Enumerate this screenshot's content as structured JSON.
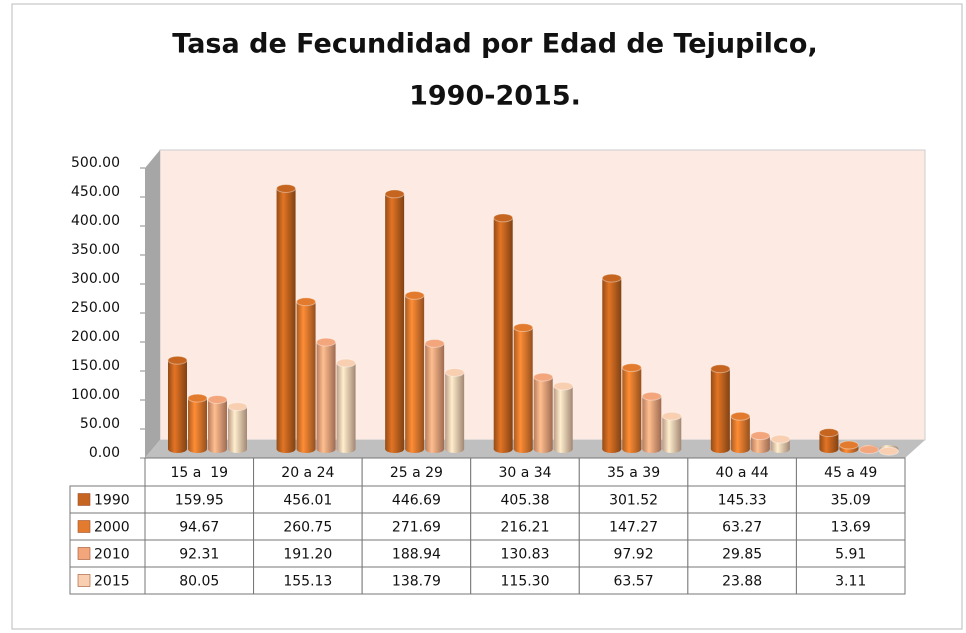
{
  "chart_data": {
    "type": "bar3d",
    "title": "Tasa de Fecundidad por Edad de Tejupilco,",
    "subtitle": "1990-2015.",
    "categories": [
      "15 a  19",
      "20 a 24",
      "25 a 29",
      "30 a 34",
      "35 a 39",
      "40 a 44",
      "45 a 49"
    ],
    "series": [
      {
        "name": "1990",
        "color": "#c5651f",
        "values": [
          159.95,
          456.01,
          446.69,
          405.38,
          301.52,
          145.33,
          35.09
        ],
        "value_labels": [
          "159.95",
          "456.01",
          "446.69",
          "405.38",
          "301.52",
          "145.33",
          "35.09"
        ]
      },
      {
        "name": "2000",
        "color": "#e37b2e",
        "values": [
          94.67,
          260.75,
          271.69,
          216.21,
          147.27,
          63.27,
          13.69
        ],
        "value_labels": [
          "94.67",
          "260.75",
          "271.69",
          "216.21",
          "147.27",
          "63.27",
          "13.69"
        ]
      },
      {
        "name": "2010",
        "color": "#f3a57c",
        "values": [
          92.31,
          191.2,
          188.94,
          130.83,
          97.92,
          29.85,
          5.91
        ],
        "value_labels": [
          "92.31",
          "191.20",
          "188.94",
          "130.83",
          "97.92",
          "29.85",
          "5.91"
        ]
      },
      {
        "name": "2015",
        "color": "#f9cfb2",
        "values": [
          80.05,
          155.13,
          138.79,
          115.3,
          63.57,
          23.88,
          3.11
        ],
        "value_labels": [
          "80.05",
          "155.13",
          "138.79",
          "115.30",
          "63.57",
          "23.88",
          "3.11"
        ]
      }
    ],
    "ylim": [
      0,
      500
    ],
    "yticks": [
      {
        "value": 0,
        "label": "0.00"
      },
      {
        "value": 50,
        "label": "50.00"
      },
      {
        "value": 100,
        "label": "100.00"
      },
      {
        "value": 150,
        "label": "150.00"
      },
      {
        "value": 200,
        "label": "200.00"
      },
      {
        "value": 250,
        "label": "250.00"
      },
      {
        "value": 300,
        "label": "300.00"
      },
      {
        "value": 350,
        "label": "350.00"
      },
      {
        "value": 400,
        "label": "400.00"
      },
      {
        "value": 450,
        "label": "450.00"
      },
      {
        "value": 500,
        "label": "500.00"
      }
    ],
    "grid": false
  }
}
